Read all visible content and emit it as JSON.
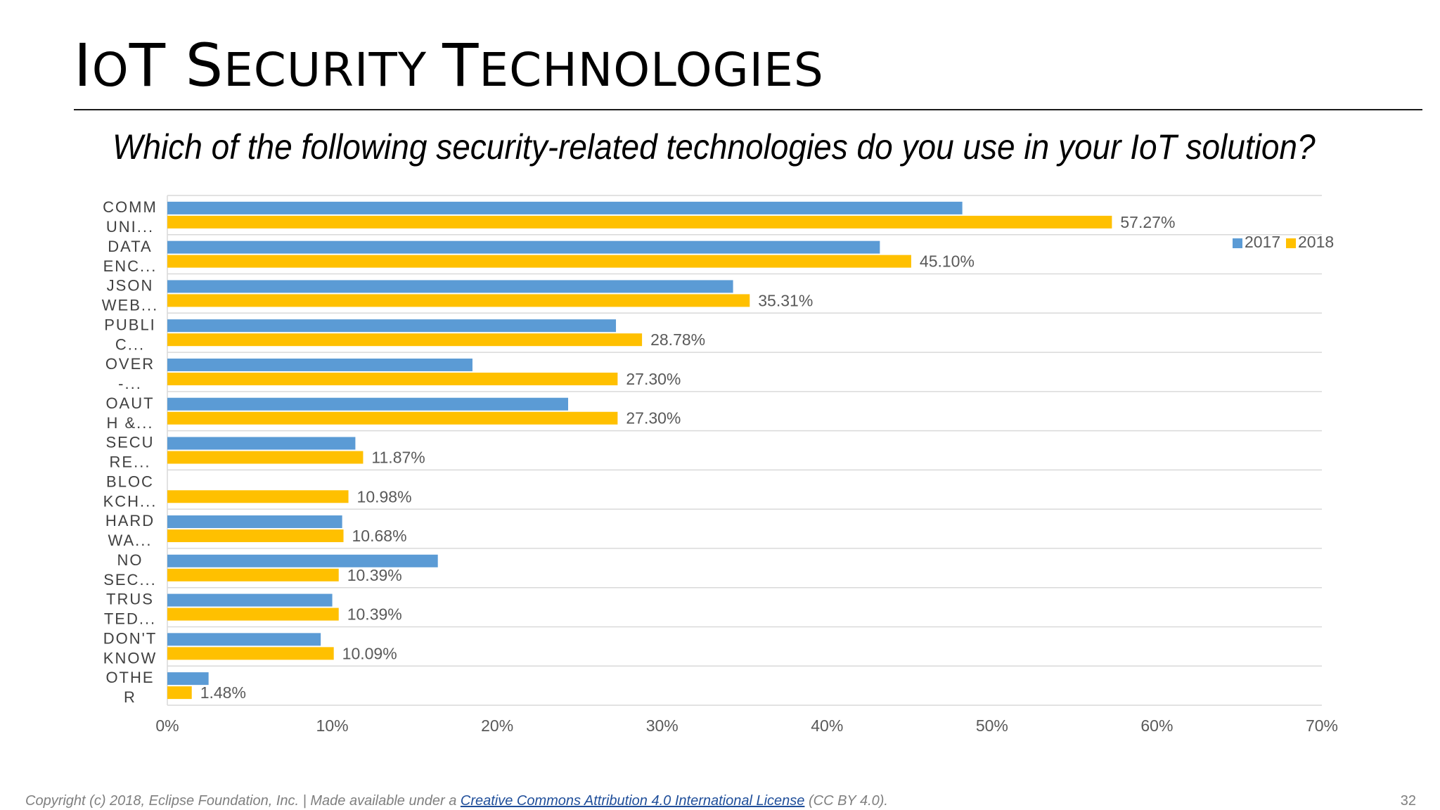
{
  "slide": {
    "title_parts": [
      {
        "t": "I",
        "sc": false
      },
      {
        "t": "O",
        "sc": true
      },
      {
        "t": "T ",
        "sc": false
      },
      {
        "t": "S",
        "sc": false
      },
      {
        "t": "ECURITY ",
        "sc": true
      },
      {
        "t": "T",
        "sc": false
      },
      {
        "t": "ECHNOLOGIES",
        "sc": true
      }
    ],
    "question": "Which of the following security-related technologies do you use in your IoT solution?",
    "page_number": "32"
  },
  "footer": {
    "prefix": "Copyright (c) 2018, Eclipse Foundation, Inc. | Made available under a ",
    "link_text": "Creative Commons Attribution 4.0 International License",
    "suffix": " (CC BY 4.0)."
  },
  "colors": {
    "series_2017": "#5b9bd5",
    "series_2018": "#ffc000",
    "gridline": "#d9d9d9",
    "axis_text": "#595959",
    "category_text": "#404040"
  },
  "chart_data": {
    "type": "bar",
    "orientation": "horizontal",
    "categories": [
      [
        "COMM",
        "UNI..."
      ],
      [
        "DATA",
        "ENC..."
      ],
      [
        "JSON",
        "WEB..."
      ],
      [
        "PUBLI",
        "C..."
      ],
      [
        "OVER",
        "-..."
      ],
      [
        "OAUT",
        "H &..."
      ],
      [
        "SECU",
        "RE..."
      ],
      [
        "BLOC",
        "KCH..."
      ],
      [
        "HARD",
        "WA..."
      ],
      [
        "NO",
        "SEC..."
      ],
      [
        "TRUS",
        "TED..."
      ],
      [
        "DON'T",
        "KNOW"
      ],
      [
        "OTHE",
        "R"
      ]
    ],
    "series": [
      {
        "name": "2017",
        "values": [
          48.2,
          43.2,
          34.3,
          27.2,
          18.5,
          24.3,
          11.4,
          0,
          10.6,
          16.4,
          10.0,
          9.3,
          2.5
        ]
      },
      {
        "name": "2018",
        "values": [
          57.27,
          45.1,
          35.31,
          28.78,
          27.3,
          27.3,
          11.87,
          10.98,
          10.68,
          10.39,
          10.39,
          10.09,
          1.48
        ]
      }
    ],
    "data_labels_2018": [
      "57.27%",
      "45.10%",
      "35.31%",
      "28.78%",
      "27.30%",
      "27.30%",
      "11.87%",
      "10.98%",
      "10.68%",
      "10.39%",
      "10.39%",
      "10.09%",
      "1.48%"
    ],
    "x_ticks": [
      "0%",
      "10%",
      "20%",
      "30%",
      "40%",
      "50%",
      "60%",
      "70%"
    ],
    "xlim": [
      0,
      70
    ],
    "legend": [
      "2017",
      "2018"
    ],
    "legend_position": "top-right",
    "grid": true
  }
}
